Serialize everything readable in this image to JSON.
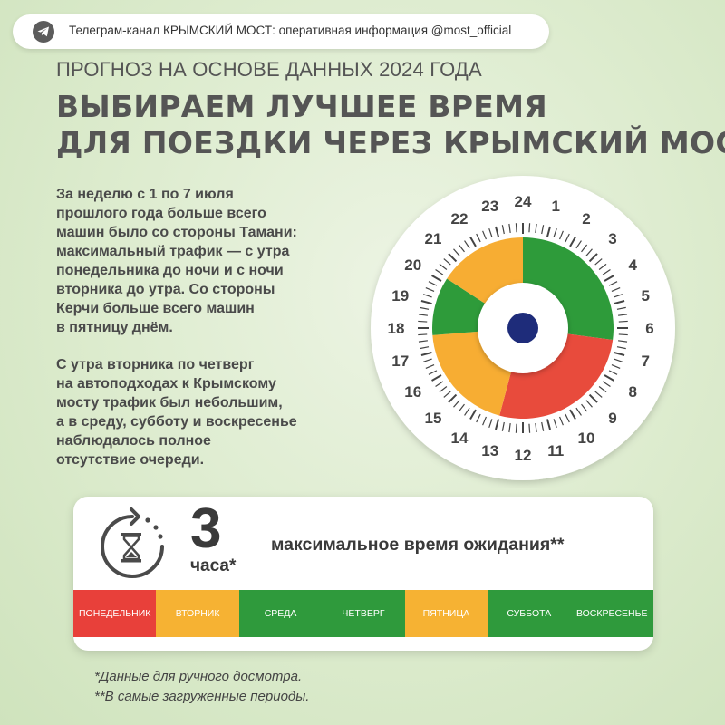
{
  "telegram_bar": {
    "icon": "telegram-icon",
    "text": "Телеграм-канал КРЫМСКИЙ МОСТ: оперативная информация @most_official"
  },
  "header": {
    "subtitle": "ПРОГНОЗ НА ОСНОВЕ ДАННЫХ 2024 ГОДА",
    "title_line1": "ВЫБИРАЕМ ЛУЧШЕЕ ВРЕМЯ",
    "title_line2": "ДЛЯ ПОЕЗДКИ ЧЕРЕЗ КРЫМСКИЙ МОСТ"
  },
  "body": {
    "paragraph1": "За неделю с 1 по 7 июля\nпрошлого года больше всего\nмашин было со стороны Тамани:\nмаксимальный трафик — с утра\nпонедельника до ночи и с ночи\nвторника до утра. Со стороны\nКерчи больше всего машин\nв пятницу днём.",
    "paragraph2": "С утра вторника по четверг\nна автоподходах к Крымскому\nмосту трафик был небольшим,\nа в среду, субботу и воскресенье\nнаблюдалось полное\nотсутствие очереди."
  },
  "clock": {
    "hours": [
      "1",
      "2",
      "3",
      "4",
      "5",
      "6",
      "7",
      "8",
      "9",
      "10",
      "11",
      "12",
      "13",
      "14",
      "15",
      "16",
      "17",
      "18",
      "19",
      "20",
      "21",
      "22",
      "23",
      "24"
    ],
    "segments": [
      {
        "from_hour": 0,
        "to_hour": 6.5,
        "color": "#2e9b3a"
      },
      {
        "from_hour": 6.5,
        "to_hour": 13,
        "color": "#e84b3c"
      },
      {
        "from_hour": 13,
        "to_hour": 17.7,
        "color": "#f7ad33"
      },
      {
        "from_hour": 17.7,
        "to_hour": 20.2,
        "color": "#2e9b3a"
      },
      {
        "from_hour": 20.2,
        "to_hour": 24,
        "color": "#f7ad33"
      }
    ],
    "center_color": "#1e2c7a"
  },
  "wait_card": {
    "icon": "hourglass-icon",
    "number": "3",
    "unit": "часа*",
    "label": "максимальное время ожидания**",
    "days": [
      {
        "label": "ПОНЕДЕЛЬНИК",
        "color": "#e8403a"
      },
      {
        "label": "ВТОРНИК",
        "color": "#f6b233"
      },
      {
        "label": "СРЕДА",
        "color": "#2f9a3c"
      },
      {
        "label": "ЧЕТВЕРГ",
        "color": "#2f9a3c"
      },
      {
        "label": "ПЯТНИЦА",
        "color": "#f6b233"
      },
      {
        "label": "СУББОТА",
        "color": "#2f9a3c"
      },
      {
        "label": "ВОСКРЕСЕНЬЕ",
        "color": "#2f9a3c"
      }
    ]
  },
  "footnotes": {
    "note1": "*Данные для ручного досмотра.",
    "note2": "**В самые загруженные периоды."
  }
}
